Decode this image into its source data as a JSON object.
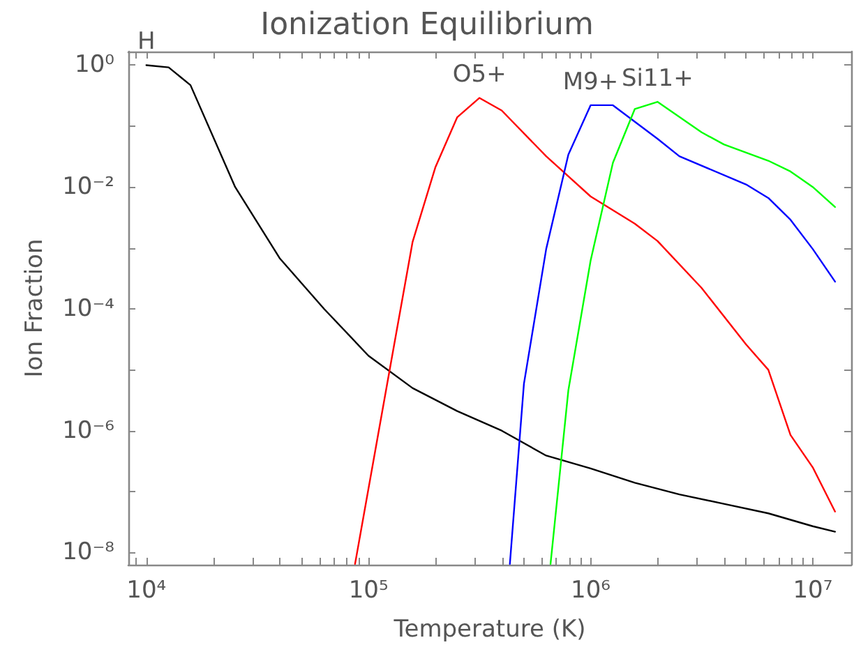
{
  "chart_data": {
    "type": "line",
    "title": "Ionization Equilibrium",
    "xlabel": "Temperature (K)",
    "ylabel": "Ion Fraction",
    "log": "xy",
    "grid": false,
    "legend": false,
    "marker": "none",
    "line_style": "solid",
    "xlim": [
      8300,
      14900000
    ],
    "ylim": [
      6.3e-09,
      1.67
    ],
    "xticks": [
      {
        "value": 9000,
        "label": null
      },
      {
        "value": 10000,
        "label": "10⁴"
      },
      {
        "value": 20000,
        "label": null
      },
      {
        "value": 30000,
        "label": null
      },
      {
        "value": 40000,
        "label": null
      },
      {
        "value": 50000,
        "label": null
      },
      {
        "value": 60000,
        "label": null
      },
      {
        "value": 70000,
        "label": null
      },
      {
        "value": 80000,
        "label": null
      },
      {
        "value": 90000,
        "label": null
      },
      {
        "value": 100000,
        "label": "10⁵"
      },
      {
        "value": 200000,
        "label": null
      },
      {
        "value": 300000,
        "label": null
      },
      {
        "value": 400000,
        "label": null
      },
      {
        "value": 500000,
        "label": null
      },
      {
        "value": 600000,
        "label": null
      },
      {
        "value": 700000,
        "label": null
      },
      {
        "value": 800000,
        "label": null
      },
      {
        "value": 900000,
        "label": null
      },
      {
        "value": 1000000,
        "label": "10⁶"
      },
      {
        "value": 2000000,
        "label": null
      },
      {
        "value": 3000000,
        "label": null
      },
      {
        "value": 4000000,
        "label": null
      },
      {
        "value": 5000000,
        "label": null
      },
      {
        "value": 6000000,
        "label": null
      },
      {
        "value": 7000000,
        "label": null
      },
      {
        "value": 8000000,
        "label": null
      },
      {
        "value": 9000000,
        "label": null
      },
      {
        "value": 10000000,
        "label": "10⁷"
      }
    ],
    "yticks": [
      {
        "value": 1e-08,
        "label": "10⁻⁸"
      },
      {
        "value": 1e-07,
        "label": null
      },
      {
        "value": 1e-06,
        "label": "10⁻⁶"
      },
      {
        "value": 1e-05,
        "label": null
      },
      {
        "value": 0.0001,
        "label": "10⁻⁴"
      },
      {
        "value": 0.001,
        "label": null
      },
      {
        "value": 0.01,
        "label": "10⁻²"
      },
      {
        "value": 0.1,
        "label": null
      },
      {
        "value": 1,
        "label": "10⁰"
      }
    ],
    "series": [
      {
        "name": "H",
        "color": "#000000",
        "x": [
          10000,
          12600,
          15800,
          25100,
          39800,
          63100,
          100000,
          158000,
          251000,
          398000,
          631000,
          1000000,
          1580000,
          2510000,
          3980000,
          6310000,
          10000000,
          12600000
        ],
        "values": [
          1.0,
          0.92,
          0.47,
          0.01,
          0.00068,
          0.0001,
          1.7e-05,
          5e-06,
          2.1e-06,
          1e-06,
          3.9e-07,
          2.4e-07,
          1.4e-07,
          9e-08,
          6.3e-08,
          4.4e-08,
          2.7e-08,
          2.2e-08
        ]
      },
      {
        "name": "O5+",
        "color": "#ff0000",
        "x": [
          87000,
          126000,
          158000,
          200000,
          251000,
          316000,
          398000,
          631000,
          1000000,
          1580000,
          2000000,
          3160000,
          5010000,
          6310000,
          7940000,
          10000000,
          12600000
        ],
        "values": [
          6.5e-09,
          1.26e-05,
          0.00126,
          0.021,
          0.14,
          0.29,
          0.18,
          0.032,
          0.007,
          0.0025,
          0.0013,
          0.00022,
          2.6e-05,
          1e-05,
          8.5e-07,
          2.5e-07,
          4.7e-08
        ]
      },
      {
        "name": "M9+",
        "color": "#0000ff",
        "x": [
          433000,
          501000,
          631000,
          794000,
          1000000,
          1260000,
          2000000,
          2510000,
          5010000,
          6310000,
          7940000,
          10000000,
          12600000
        ],
        "values": [
          6.5e-09,
          5.9e-06,
          0.00096,
          0.034,
          0.22,
          0.22,
          0.062,
          0.032,
          0.011,
          0.0066,
          0.0029,
          0.00096,
          0.00028
        ]
      },
      {
        "name": "Si11+",
        "color": "#00ff00",
        "x": [
          660000,
          794000,
          1000000,
          1260000,
          1580000,
          2000000,
          3160000,
          3980000,
          6310000,
          7940000,
          10000000,
          12600000
        ],
        "values": [
          6.5e-09,
          4.6e-06,
          0.00062,
          0.025,
          0.19,
          0.25,
          0.079,
          0.05,
          0.027,
          0.018,
          0.01,
          0.0047
        ]
      }
    ]
  }
}
